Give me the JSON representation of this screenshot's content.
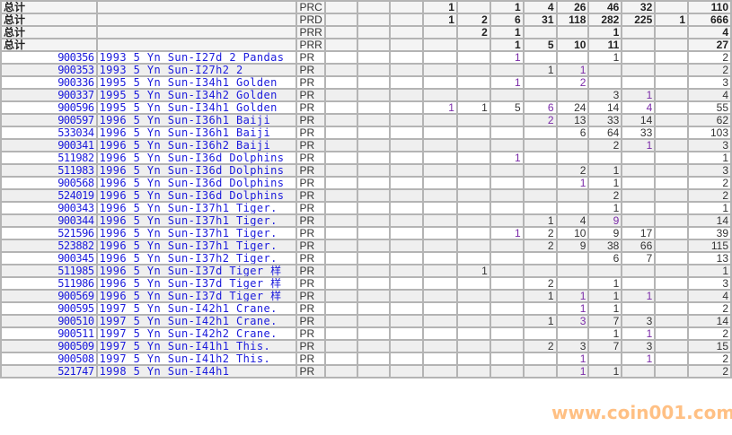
{
  "colors": {
    "link": "#1a1adc",
    "purple_value": "#7a2aa8",
    "grid": "#b4b4b4",
    "row_alt": "#efefef",
    "watermark": "#ff9632"
  },
  "totals": [
    {
      "label": "总计",
      "code": "PRC",
      "values": [
        "",
        "",
        "",
        "1",
        "",
        "1",
        "4",
        "26",
        "46",
        "32",
        "",
        "110"
      ]
    },
    {
      "label": "总计",
      "code": "PRD",
      "values": [
        "",
        "",
        "",
        "1",
        "2",
        "6",
        "31",
        "118",
        "282",
        "225",
        "1",
        "666"
      ]
    },
    {
      "label": "总计",
      "code": "PRR",
      "values": [
        "",
        "",
        "",
        "",
        "2",
        "1",
        "",
        "",
        "1",
        "",
        "",
        "4"
      ]
    },
    {
      "label": "总计",
      "code": "PRR",
      "values": [
        "",
        "",
        "",
        "",
        "",
        "1",
        "5",
        "10",
        "11",
        "",
        "",
        "27"
      ]
    }
  ],
  "rows": [
    {
      "id": "900356",
      "name": "1993 5 Yn Sun-I27d 2 Pandas",
      "code": "PR",
      "values": [
        "",
        "",
        "",
        "",
        "",
        "1",
        "",
        "",
        "1",
        "",
        "",
        "2"
      ],
      "purple": [
        5
      ]
    },
    {
      "id": "900353",
      "name": "1993 5 Yn Sun-I27h2 2",
      "code": "PR",
      "values": [
        "",
        "",
        "",
        "",
        "",
        "",
        "1",
        "1",
        "",
        "",
        "",
        "2"
      ],
      "purple": [
        7
      ]
    },
    {
      "id": "900336",
      "name": "1995 5 Yn Sun-I34h1 Golden",
      "code": "PR",
      "values": [
        "",
        "",
        "",
        "",
        "",
        "1",
        "",
        "2",
        "",
        "",
        "",
        "3"
      ],
      "purple": [
        5,
        7
      ]
    },
    {
      "id": "900337",
      "name": "1995 5 Yn Sun-I34h2 Golden",
      "code": "PR",
      "values": [
        "",
        "",
        "",
        "",
        "",
        "",
        "",
        "",
        "3",
        "1",
        "",
        "4"
      ],
      "purple": [
        9
      ]
    },
    {
      "id": "900596",
      "name": "1995 5 Yn Sun-I34h1 Golden",
      "code": "PR",
      "values": [
        "",
        "",
        "",
        "1",
        "1",
        "5",
        "6",
        "24",
        "14",
        "4",
        "",
        "55"
      ],
      "purple": [
        3,
        6,
        9
      ]
    },
    {
      "id": "900597",
      "name": "1996 5 Yn Sun-I36h1 Baiji",
      "code": "PR",
      "values": [
        "",
        "",
        "",
        "",
        "",
        "",
        "2",
        "13",
        "33",
        "14",
        "",
        "62"
      ],
      "purple": [
        6
      ]
    },
    {
      "id": "533034",
      "name": "1996 5 Yn Sun-I36h1 Baiji",
      "code": "PR",
      "values": [
        "",
        "",
        "",
        "",
        "",
        "",
        "",
        "6",
        "64",
        "33",
        "",
        "103"
      ],
      "purple": []
    },
    {
      "id": "900341",
      "name": "1996 5 Yn Sun-I36h2 Baiji",
      "code": "PR",
      "values": [
        "",
        "",
        "",
        "",
        "",
        "",
        "",
        "",
        "2",
        "1",
        "",
        "3"
      ],
      "purple": [
        9
      ]
    },
    {
      "id": "511982",
      "name": "1996 5 Yn Sun-I36d Dolphins",
      "code": "PR",
      "values": [
        "",
        "",
        "",
        "",
        "",
        "1",
        "",
        "",
        "",
        "",
        "",
        "1"
      ],
      "purple": [
        5
      ]
    },
    {
      "id": "511983",
      "name": "1996 5 Yn Sun-I36d Dolphins",
      "code": "PR",
      "values": [
        "",
        "",
        "",
        "",
        "",
        "",
        "",
        "2",
        "1",
        "",
        "",
        "3"
      ],
      "purple": []
    },
    {
      "id": "900568",
      "name": "1996 5 Yn Sun-I36d Dolphins",
      "code": "PR",
      "values": [
        "",
        "",
        "",
        "",
        "",
        "",
        "",
        "1",
        "1",
        "",
        "",
        "2"
      ],
      "purple": [
        7
      ]
    },
    {
      "id": "524019",
      "name": "1996 5 Yn Sun-I36d Dolphins",
      "code": "PR",
      "values": [
        "",
        "",
        "",
        "",
        "",
        "",
        "",
        "",
        "2",
        "",
        "",
        "2"
      ],
      "purple": []
    },
    {
      "id": "900343",
      "name": "1996 5 Yn Sun-I37h1 Tiger.",
      "code": "PR",
      "values": [
        "",
        "",
        "",
        "",
        "",
        "",
        "",
        "",
        "1",
        "",
        "",
        "1"
      ],
      "purple": []
    },
    {
      "id": "900344",
      "name": "1996 5 Yn Sun-I37h1 Tiger.",
      "code": "PR",
      "values": [
        "",
        "",
        "",
        "",
        "",
        "",
        "1",
        "4",
        "9",
        "",
        "",
        "14"
      ],
      "purple": [
        8
      ]
    },
    {
      "id": "521596",
      "name": "1996 5 Yn Sun-I37h1 Tiger.",
      "code": "PR",
      "values": [
        "",
        "",
        "",
        "",
        "",
        "1",
        "2",
        "10",
        "9",
        "17",
        "",
        "39"
      ],
      "purple": [
        5
      ]
    },
    {
      "id": "523882",
      "name": "1996 5 Yn Sun-I37h1 Tiger.",
      "code": "PR",
      "values": [
        "",
        "",
        "",
        "",
        "",
        "",
        "2",
        "9",
        "38",
        "66",
        "",
        "115"
      ],
      "purple": []
    },
    {
      "id": "900345",
      "name": "1996 5 Yn Sun-I37h2 Tiger.",
      "code": "PR",
      "values": [
        "",
        "",
        "",
        "",
        "",
        "",
        "",
        "",
        "6",
        "7",
        "",
        "13"
      ],
      "purple": []
    },
    {
      "id": "511985",
      "name": "1996 5 Yn Sun-I37d Tiger 样",
      "code": "PR",
      "values": [
        "",
        "",
        "",
        "",
        "1",
        "",
        "",
        "",
        "",
        "",
        "",
        "1"
      ],
      "purple": []
    },
    {
      "id": "511986",
      "name": "1996 5 Yn Sun-I37d Tiger 样",
      "code": "PR",
      "values": [
        "",
        "",
        "",
        "",
        "",
        "",
        "2",
        "",
        "1",
        "",
        "",
        "3"
      ],
      "purple": []
    },
    {
      "id": "900569",
      "name": "1996 5 Yn Sun-I37d Tiger 样",
      "code": "PR",
      "values": [
        "",
        "",
        "",
        "",
        "",
        "",
        "1",
        "1",
        "1",
        "1",
        "",
        "4"
      ],
      "purple": [
        7,
        9
      ]
    },
    {
      "id": "900595",
      "name": "1997 5 Yn Sun-I42h1 Crane.",
      "code": "PR",
      "values": [
        "",
        "",
        "",
        "",
        "",
        "",
        "",
        "1",
        "1",
        "",
        "",
        "2"
      ],
      "purple": [
        7
      ]
    },
    {
      "id": "900510",
      "name": "1997 5 Yn Sun-I42h1 Crane.",
      "code": "PR",
      "values": [
        "",
        "",
        "",
        "",
        "",
        "",
        "1",
        "3",
        "7",
        "3",
        "",
        "14"
      ],
      "purple": [
        7
      ]
    },
    {
      "id": "900511",
      "name": "1997 5 Yn Sun-I42h2 Crane.",
      "code": "PR",
      "values": [
        "",
        "",
        "",
        "",
        "",
        "",
        "",
        "",
        "1",
        "1",
        "",
        "2"
      ],
      "purple": [
        9
      ]
    },
    {
      "id": "900509",
      "name": "1997 5 Yn Sun-I41h1 This.",
      "code": "PR",
      "values": [
        "",
        "",
        "",
        "",
        "",
        "",
        "2",
        "3",
        "7",
        "3",
        "",
        "15"
      ],
      "purple": []
    },
    {
      "id": "900508",
      "name": "1997 5 Yn Sun-I41h2 This.",
      "code": "PR",
      "values": [
        "",
        "",
        "",
        "",
        "",
        "",
        "",
        "1",
        "",
        "1",
        "",
        "2"
      ],
      "purple": [
        7,
        9
      ]
    },
    {
      "id": "521747",
      "name": "1998 5 Yn Sun-I44h1",
      "code": "PR",
      "values": [
        "",
        "",
        "",
        "",
        "",
        "",
        "",
        "1",
        "1",
        "",
        "",
        "2"
      ],
      "purple": [
        7
      ]
    }
  ],
  "watermark": "www.coin001.com"
}
